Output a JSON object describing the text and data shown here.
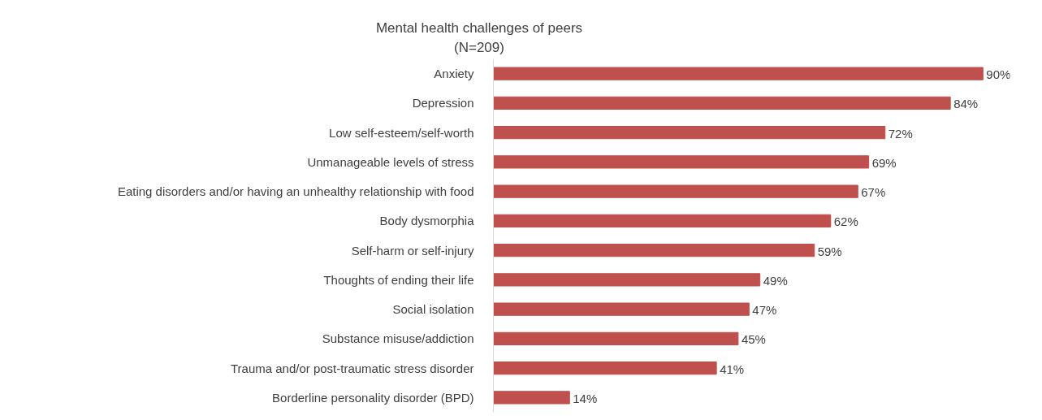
{
  "chart_data": {
    "type": "bar",
    "orientation": "horizontal",
    "title": "Mental health challenges of peers",
    "subtitle": "(N=209)",
    "categories": [
      "Anxiety",
      "Depression",
      "Low self-esteem/self-worth",
      "Unmanageable levels of stress",
      "Eating disorders and/or having an unhealthy relationship with food",
      "Body dysmorphia",
      "Self-harm or self-injury",
      "Thoughts of ending their life",
      "Social isolation",
      "Substance misuse/addiction",
      "Trauma and/or post-traumatic stress disorder",
      "Borderline personality disorder (BPD)"
    ],
    "values": [
      90,
      84,
      72,
      69,
      67,
      62,
      59,
      49,
      47,
      45,
      41,
      14
    ],
    "value_labels": [
      "90%",
      "84%",
      "72%",
      "69%",
      "67%",
      "62%",
      "59%",
      "49%",
      "47%",
      "45%",
      "41%",
      "14%"
    ],
    "color": "#c0504d"
  }
}
